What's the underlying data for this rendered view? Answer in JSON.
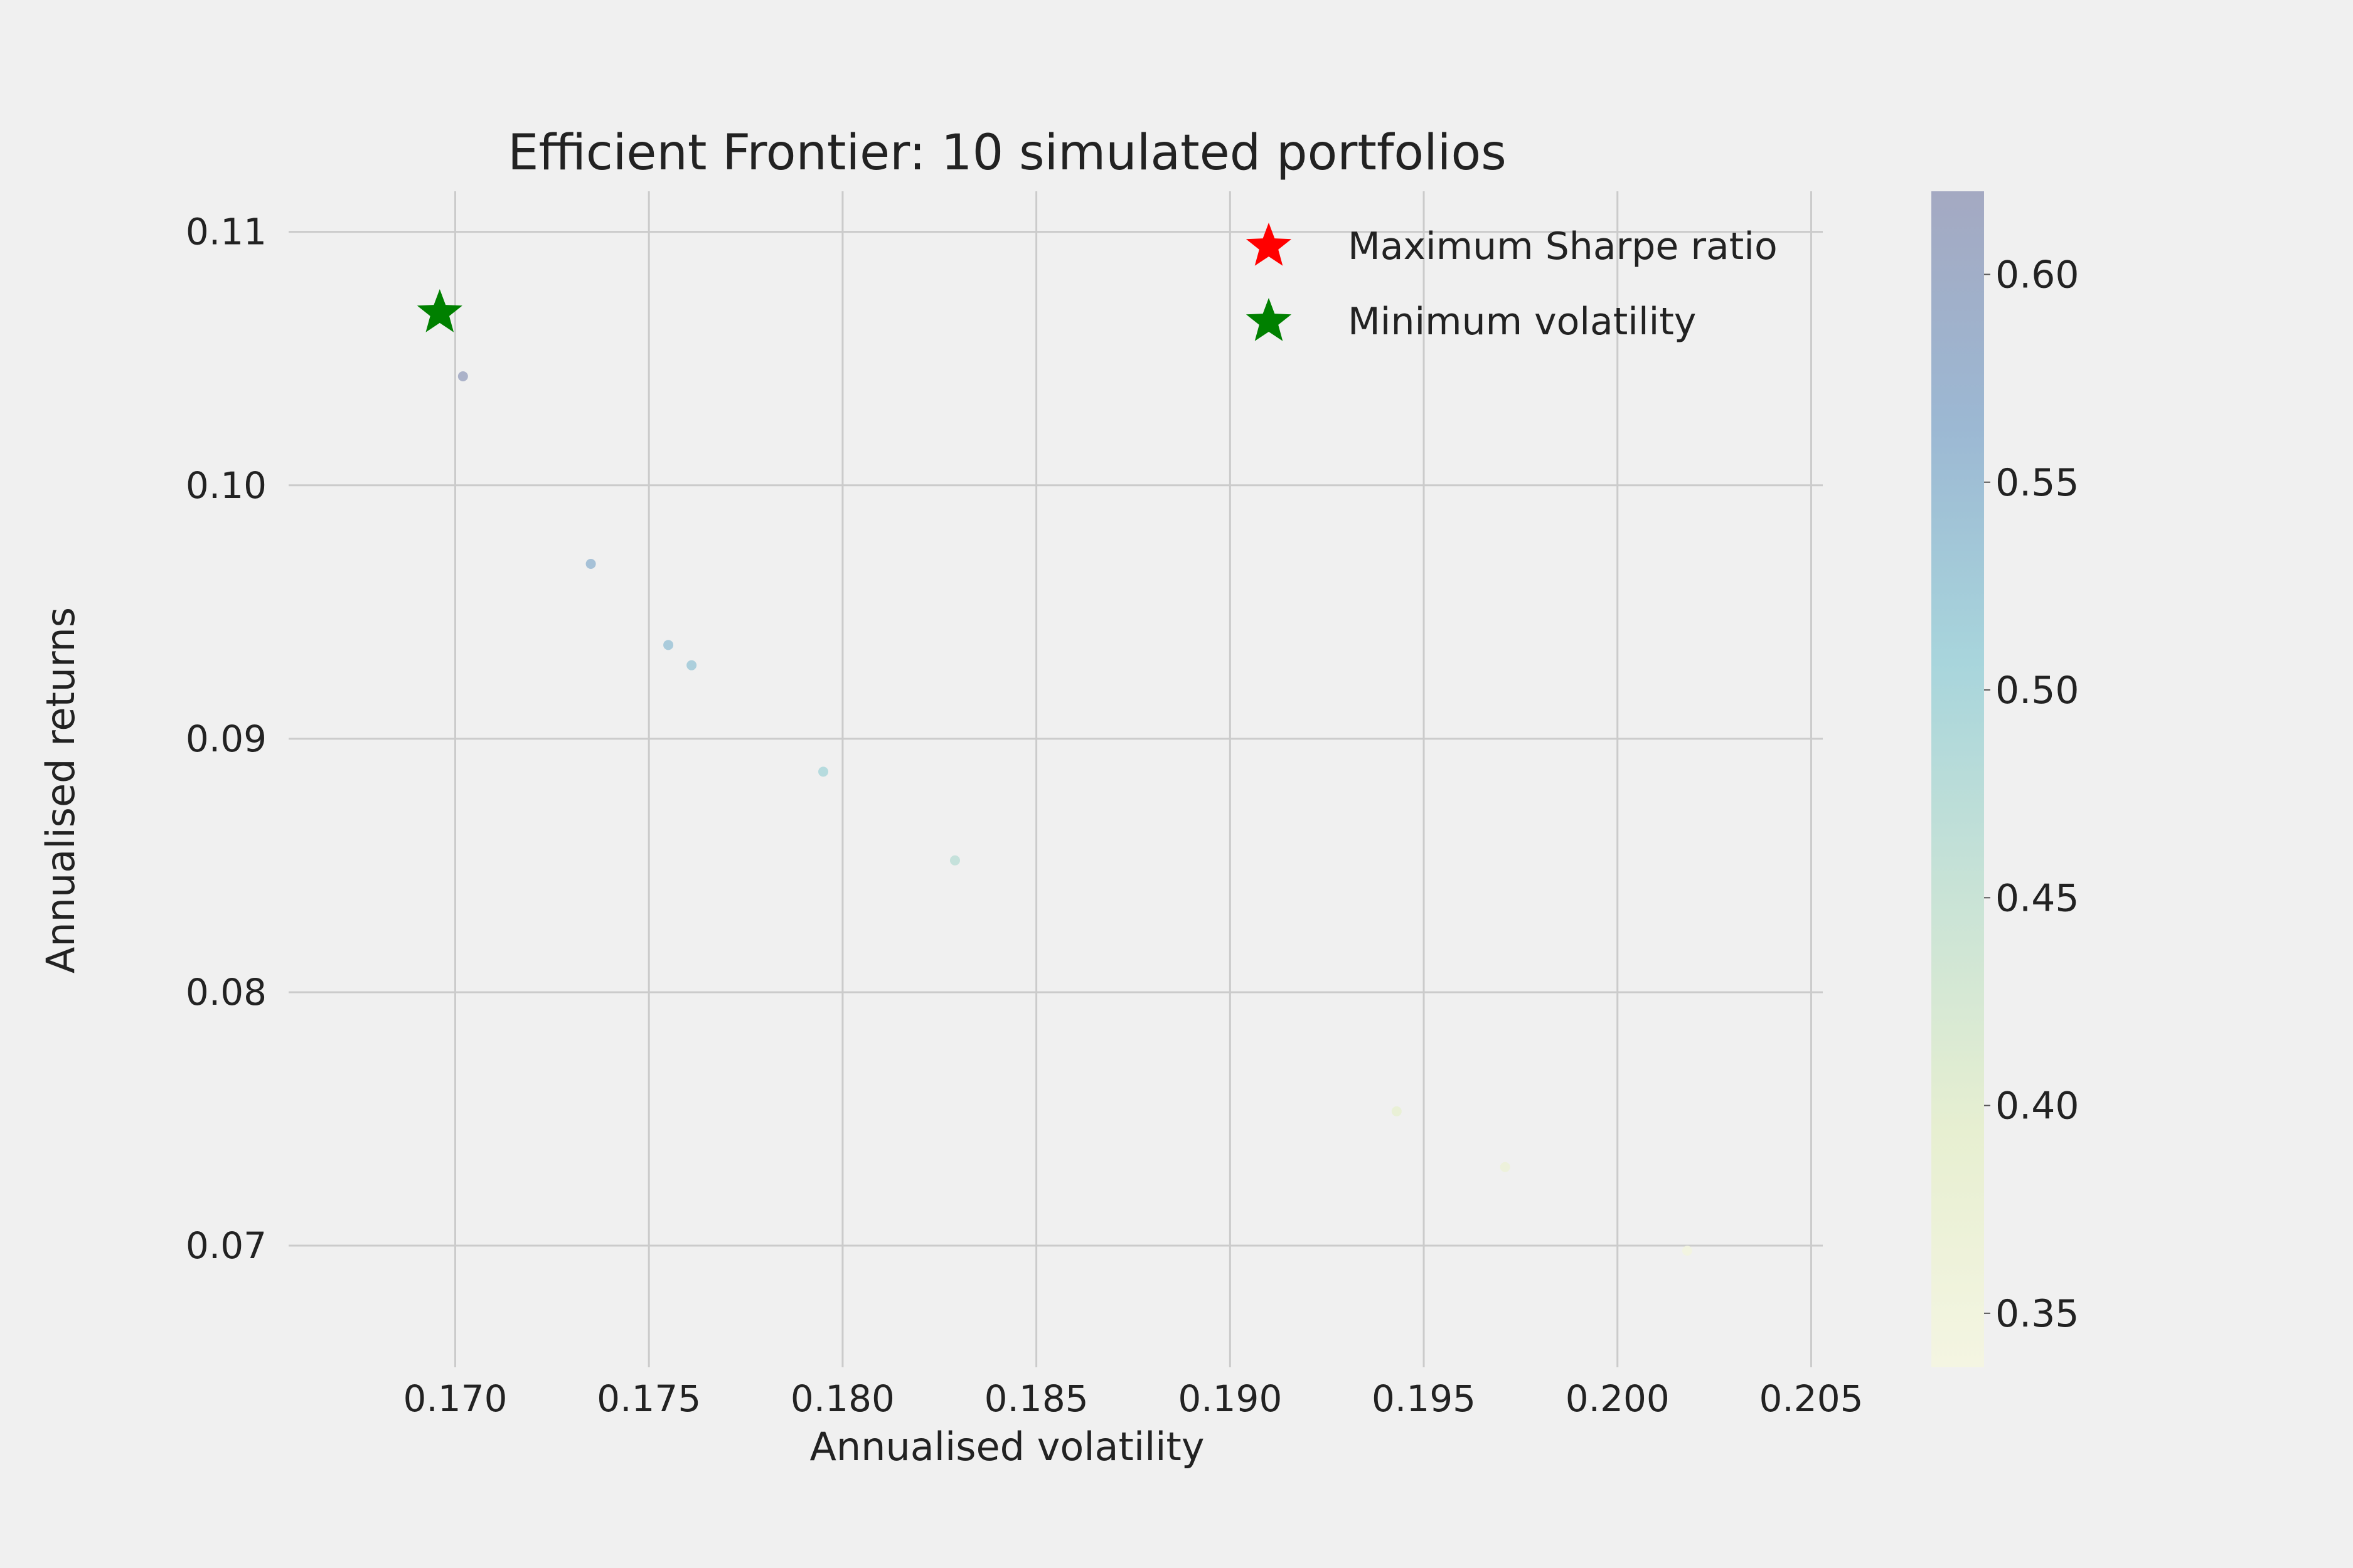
{
  "chart_data": {
    "type": "scatter",
    "title": "Efficient Frontier: 10 simulated portfolios",
    "xlabel": "Annualised volatility",
    "ylabel": "Annualised returns",
    "xlim": [
      0.1657,
      0.2053
    ],
    "ylim": [
      0.0652,
      0.1116
    ],
    "xticks": [
      0.17,
      0.175,
      0.18,
      0.185,
      0.19,
      0.195,
      0.2,
      0.205
    ],
    "xtick_labels": [
      "0.170",
      "0.175",
      "0.180",
      "0.185",
      "0.190",
      "0.195",
      "0.200",
      "0.205"
    ],
    "yticks": [
      0.07,
      0.08,
      0.09,
      0.1,
      0.11
    ],
    "ytick_labels": [
      "0.07",
      "0.08",
      "0.09",
      "0.10",
      "0.11"
    ],
    "grid": true,
    "legend_placement": "top-right",
    "colorbar": {
      "range": [
        0.337,
        0.62
      ],
      "ticks": [
        0.35,
        0.4,
        0.45,
        0.5,
        0.55,
        0.6
      ],
      "tick_labels": [
        "0.35",
        "0.40",
        "0.45",
        "0.50",
        "0.55",
        "0.60"
      ],
      "colormap": "YlGnBu"
    },
    "points": [
      {
        "x": 0.1702,
        "y": 0.1043,
        "sharpe": 0.613
      },
      {
        "x": 0.1735,
        "y": 0.0969,
        "sharpe": 0.558
      },
      {
        "x": 0.1755,
        "y": 0.0937,
        "sharpe": 0.534
      },
      {
        "x": 0.1761,
        "y": 0.0929,
        "sharpe": 0.527
      },
      {
        "x": 0.1795,
        "y": 0.0887,
        "sharpe": 0.494
      },
      {
        "x": 0.1829,
        "y": 0.0852,
        "sharpe": 0.466
      },
      {
        "x": 0.1943,
        "y": 0.0753,
        "sharpe": 0.388
      },
      {
        "x": 0.1971,
        "y": 0.0731,
        "sharpe": 0.371
      },
      {
        "x": 0.2018,
        "y": 0.0698,
        "sharpe": 0.346
      }
    ],
    "special_points": [
      {
        "name": "Maximum Sharpe ratio",
        "color": "#ff0000",
        "x": 0.1696,
        "y": 0.1068,
        "visible": false
      },
      {
        "name": "Minimum volatility",
        "color": "#008000",
        "x": 0.1696,
        "y": 0.1068,
        "visible": true
      }
    ],
    "legend": [
      {
        "label": "Maximum Sharpe ratio",
        "color": "#ff0000"
      },
      {
        "label": "Minimum volatility",
        "color": "#008000"
      }
    ]
  }
}
